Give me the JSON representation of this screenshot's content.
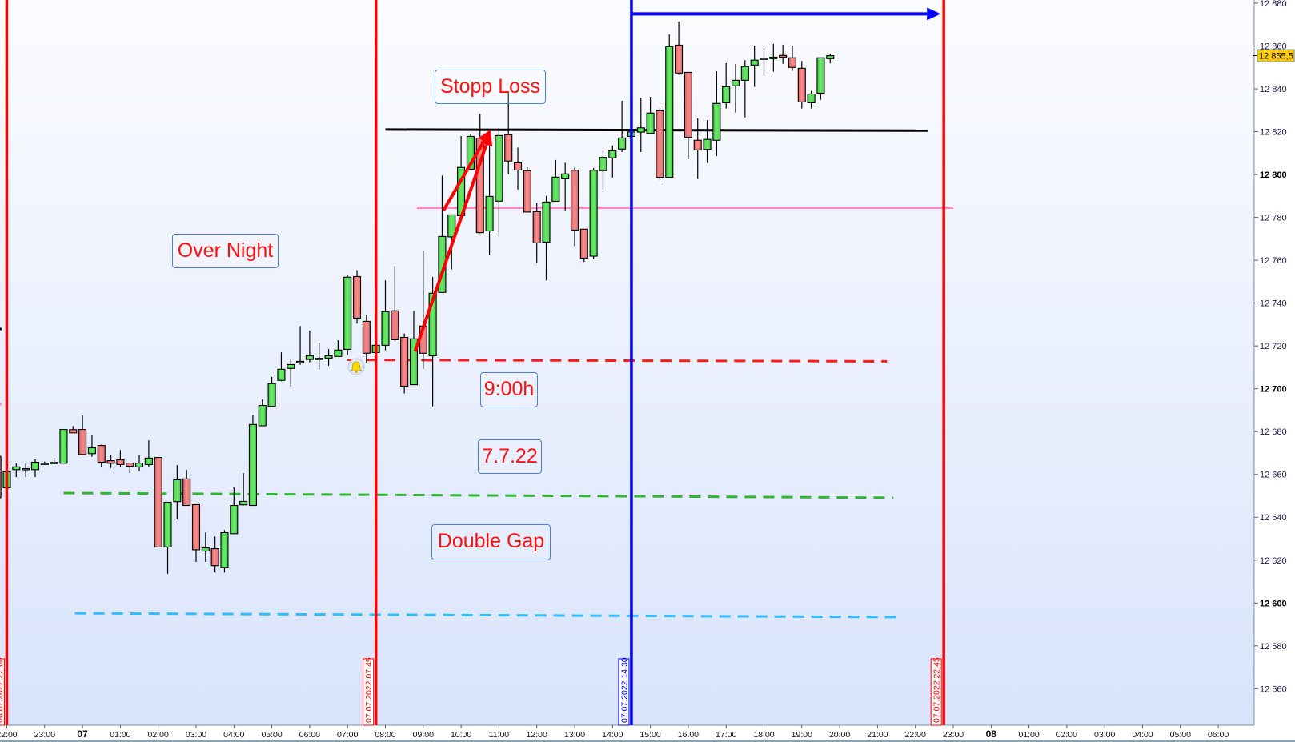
{
  "chart_data": {
    "type": "candlestick",
    "interval": "15min",
    "y_axis": {
      "range": [
        12545,
        12882
      ],
      "ticks": [
        12880,
        12860,
        12840,
        12820,
        12800,
        12780,
        12760,
        12740,
        12720,
        12700,
        12680,
        12660,
        12640,
        12620,
        12600,
        12580,
        12560
      ],
      "bold_ticks": [
        12800,
        12700,
        12600
      ],
      "tick_labels": [
        "12 880",
        "12 860",
        "12 840",
        "12 820",
        "12 800",
        "12 780",
        "12 760",
        "12 740",
        "12 720",
        "12 700",
        "12 680",
        "12 660",
        "12 640",
        "12 620",
        "12 600",
        "12 580",
        "12 560"
      ]
    },
    "x_axis": {
      "ticks": [
        {
          "t": "06.07 22:00",
          "label": "22:00"
        },
        {
          "t": "06.07 23:00",
          "label": "23:00"
        },
        {
          "t": "07.07 00:00",
          "label": "07",
          "bold": true
        },
        {
          "t": "07.07 01:00",
          "label": "01:00"
        },
        {
          "t": "07.07 02:00",
          "label": "02:00"
        },
        {
          "t": "07.07 03:00",
          "label": "03:00"
        },
        {
          "t": "07.07 04:00",
          "label": "04:00"
        },
        {
          "t": "07.07 05:00",
          "label": "05:00"
        },
        {
          "t": "07.07 06:00",
          "label": "06:00"
        },
        {
          "t": "07.07 07:00",
          "label": "07:00"
        },
        {
          "t": "07.07 08:00",
          "label": "08:00"
        },
        {
          "t": "07.07 09:00",
          "label": "09:00"
        },
        {
          "t": "07.07 10:00",
          "label": "10:00"
        },
        {
          "t": "07.07 11:00",
          "label": "11:00"
        },
        {
          "t": "07.07 12:00",
          "label": "12:00"
        },
        {
          "t": "07.07 13:00",
          "label": "13:00"
        },
        {
          "t": "07.07 14:00",
          "label": "14:00"
        },
        {
          "t": "07.07 15:00",
          "label": "15:00"
        },
        {
          "t": "07.07 16:00",
          "label": "16:00"
        },
        {
          "t": "07.07 17:00",
          "label": "17:00"
        },
        {
          "t": "07.07 18:00",
          "label": "18:00"
        },
        {
          "t": "07.07 19:00",
          "label": "19:00"
        },
        {
          "t": "07.07 20:00",
          "label": "20:00"
        },
        {
          "t": "07.07 21:00",
          "label": "21:00"
        },
        {
          "t": "07.07 22:00",
          "label": "22:00"
        },
        {
          "t": "07.07 23:00",
          "label": "23:00"
        },
        {
          "t": "08.07 00:00",
          "label": "08",
          "bold": true
        },
        {
          "t": "08.07 01:00",
          "label": "01:00"
        },
        {
          "t": "08.07 02:00",
          "label": "02:00"
        },
        {
          "t": "08.07 03:00",
          "label": "03:00"
        },
        {
          "t": "08.07 04:00",
          "label": "04:00"
        },
        {
          "t": "08.07 05:00",
          "label": "05:00"
        },
        {
          "t": "08.07 06:00",
          "label": "06:00"
        }
      ]
    },
    "last_price": {
      "value": 12855.5,
      "label": "12 855,5"
    },
    "candles_columns": [
      "time",
      "open",
      "high",
      "low",
      "close"
    ],
    "candles": [
      [
        "06.07 21:45",
        12668.4,
        12669,
        12649,
        12649.1
      ],
      [
        "06.07 22:00",
        12653.7,
        12662,
        12652,
        12661.2
      ],
      [
        "06.07 22:15",
        12662.2,
        12665.3,
        12658.7,
        12663.5
      ],
      [
        "06.07 22:30",
        12662.7,
        12665,
        12658.7,
        12662.7
      ],
      [
        "06.07 22:45",
        12662.2,
        12667,
        12658.7,
        12665.7
      ],
      [
        "06.07 23:00",
        12665.2,
        12666,
        12664.5,
        12665.2
      ],
      [
        "06.07 23:15",
        12665.6,
        12667.7,
        12664.8,
        12665.6
      ],
      [
        "06.07 23:30",
        12665.2,
        12681,
        12665.2,
        12681
      ],
      [
        "06.07 23:45",
        12680.9,
        12682.6,
        12679.4,
        12679.4
      ],
      [
        "07.07 00:00",
        12681,
        12687.5,
        12669.3,
        12669.3
      ],
      [
        "07.07 00:15",
        12669.7,
        12678.2,
        12668.2,
        12672.4
      ],
      [
        "07.07 00:30",
        12673.5,
        12674,
        12663.3,
        12665.7
      ],
      [
        "07.07 00:45",
        12666.4,
        12668.8,
        12663,
        12665.2
      ],
      [
        "07.07 01:00",
        12666.8,
        12671.4,
        12663.7,
        12664.6
      ],
      [
        "07.07 01:15",
        12665.3,
        12665.3,
        12660.7,
        12663.8
      ],
      [
        "07.07 01:30",
        12663.5,
        12669,
        12661.5,
        12665.3
      ],
      [
        "07.07 01:45",
        12664.6,
        12675.9,
        12663.7,
        12667.6
      ],
      [
        "07.07 02:00",
        12667.9,
        12667.9,
        12626.1,
        12626.1
      ],
      [
        "07.07 02:15",
        12626.1,
        12647,
        12613.6,
        12647
      ],
      [
        "07.07 02:30",
        12647.3,
        12664.3,
        12639,
        12657.5
      ],
      [
        "07.07 02:45",
        12657.9,
        12662.1,
        12645.5,
        12645.5
      ],
      [
        "07.07 03:00",
        12645.9,
        12645.9,
        12619.2,
        12624.8
      ],
      [
        "07.07 03:15",
        12624.2,
        12632.9,
        12619.2,
        12625.7
      ],
      [
        "07.07 03:30",
        12625.3,
        12631,
        12614.2,
        12617.4
      ],
      [
        "07.07 03:45",
        12616.6,
        12634,
        12614.2,
        12632.8
      ],
      [
        "07.07 04:00",
        12632.3,
        12653.9,
        12632.3,
        12645.5
      ],
      [
        "07.07 04:15",
        12645.8,
        12660.6,
        12645.5,
        12647.4
      ],
      [
        "07.07 04:30",
        12645.5,
        12687.7,
        12645.5,
        12683.3
      ],
      [
        "07.07 04:45",
        12682.7,
        12695,
        12682.7,
        12692.2
      ],
      [
        "07.07 05:00",
        12691.8,
        12705.5,
        12691.8,
        12702.4
      ],
      [
        "07.07 05:15",
        12703.9,
        12717,
        12703.5,
        12709.1
      ],
      [
        "07.07 05:30",
        12709.5,
        12713.6,
        12701.1,
        12711.3
      ],
      [
        "07.07 05:45",
        12712.8,
        12729.3,
        12711.2,
        12712.8
      ],
      [
        "07.07 06:00",
        12713.7,
        12727.2,
        12712.3,
        12715.4
      ],
      [
        "07.07 06:15",
        12714.2,
        12721.5,
        12709,
        12714.2
      ],
      [
        "07.07 06:30",
        12714.3,
        12718.6,
        12710.8,
        12715.4
      ],
      [
        "07.07 06:45",
        12715.1,
        12722.7,
        12715.1,
        12718.1
      ],
      [
        "07.07 07:00",
        12718.4,
        12752.9,
        12715.8,
        12752.1
      ],
      [
        "07.07 07:15",
        12752.4,
        12755.4,
        12730.4,
        12733
      ],
      [
        "07.07 07:30",
        12731.5,
        12734.6,
        12712.1,
        12716.6
      ],
      [
        "07.07 07:45",
        12716.9,
        12720.3,
        12716.9,
        12720.3
      ],
      [
        "07.07 08:00",
        12720.3,
        12750.7,
        12718,
        12736
      ],
      [
        "07.07 08:15",
        12736.4,
        12757.3,
        12722.5,
        12722.9
      ],
      [
        "07.07 08:30",
        12724,
        12725.8,
        12697.8,
        12701.2
      ],
      [
        "07.07 08:45",
        12701.9,
        12736.4,
        12701.9,
        12723.3
      ],
      [
        "07.07 09:00",
        12729.3,
        12764.4,
        12709.3,
        12716.6
      ],
      [
        "07.07 09:15",
        12715.4,
        12752.2,
        12691.8,
        12744.6
      ],
      [
        "07.07 09:30",
        12745,
        12799.5,
        12745,
        12771.1
      ],
      [
        "07.07 09:45",
        12770.9,
        12781.2,
        12755.7,
        12781.2
      ],
      [
        "07.07 10:00",
        12780.8,
        12818,
        12780.8,
        12803.3
      ],
      [
        "07.07 10:15",
        12802.5,
        12819,
        12802.5,
        12817.8
      ],
      [
        "07.07 10:30",
        12817,
        12828.3,
        12772.5,
        12772.9
      ],
      [
        "07.07 10:45",
        12773.7,
        12814.2,
        12762.4,
        12789.8
      ],
      [
        "07.07 11:00",
        12787.6,
        12821.7,
        12772.1,
        12818.2
      ],
      [
        "07.07 11:15",
        12818.6,
        12838.9,
        12800.2,
        12806.3
      ],
      [
        "07.07 11:30",
        12805.5,
        12812.6,
        12793,
        12802.1
      ],
      [
        "07.07 11:45",
        12801.8,
        12803.4,
        12782.5,
        12782.5
      ],
      [
        "07.07 12:00",
        12782.7,
        12786.8,
        12758.7,
        12768.1
      ],
      [
        "07.07 12:15",
        12768.5,
        12790,
        12750.6,
        12787.2
      ],
      [
        "07.07 12:30",
        12787.5,
        12806.8,
        12787.5,
        12798.8
      ],
      [
        "07.07 12:45",
        12798,
        12805.5,
        12783,
        12800.3
      ],
      [
        "07.07 13:00",
        12802,
        12803.3,
        12766.6,
        12774.1
      ],
      [
        "07.07 13:15",
        12774.5,
        12774.5,
        12759.2,
        12761
      ],
      [
        "07.07 13:30",
        12761.9,
        12803,
        12760.5,
        12802
      ],
      [
        "07.07 13:45",
        12801.8,
        12811.1,
        12793,
        12808
      ],
      [
        "07.07 14:00",
        12807.8,
        12813.6,
        12798.6,
        12811.1
      ],
      [
        "07.07 14:15",
        12811.9,
        12834.4,
        12810.5,
        12817.1
      ],
      [
        "07.07 14:30",
        12817.8,
        12820.5,
        12817.5,
        12819.9
      ],
      [
        "07.07 14:45",
        12819.8,
        12835.9,
        12810.5,
        12821.8
      ],
      [
        "07.07 15:00",
        12819.2,
        12836.3,
        12819,
        12828.7
      ],
      [
        "07.07 15:15",
        12829.8,
        12831,
        12797.5,
        12798.7
      ],
      [
        "07.07 15:30",
        12798.7,
        12865.4,
        12798.7,
        12859.7
      ],
      [
        "07.07 15:45",
        12860.4,
        12871.4,
        12846.6,
        12847.4
      ],
      [
        "07.07 16:00",
        12847.7,
        12847.7,
        12807.1,
        12817.4
      ],
      [
        "07.07 16:15",
        12816,
        12826.2,
        12797.9,
        12811.5
      ],
      [
        "07.07 16:30",
        12811.7,
        12825.4,
        12805.4,
        12816.4
      ],
      [
        "07.07 16:45",
        12816,
        12848.2,
        12808.6,
        12833.2
      ],
      [
        "07.07 17:00",
        12833.5,
        12852,
        12830.8,
        12841
      ],
      [
        "07.07 17:15",
        12841.4,
        12851.6,
        12828.9,
        12844
      ],
      [
        "07.07 17:30",
        12844,
        12853.4,
        12826.7,
        12850.4
      ],
      [
        "07.07 17:45",
        12851.1,
        12860.2,
        12840.9,
        12853.4
      ],
      [
        "07.07 18:00",
        12854.3,
        12860.2,
        12845.8,
        12854.3
      ],
      [
        "07.07 18:15",
        12854.1,
        12861,
        12848,
        12854.8
      ],
      [
        "07.07 18:30",
        12855.6,
        12860.6,
        12851.7,
        12854.8
      ],
      [
        "07.07 18:45",
        12854.5,
        12860.2,
        12848.4,
        12850
      ],
      [
        "07.07 19:00",
        12849.6,
        12853,
        12830.8,
        12833.9
      ],
      [
        "07.07 19:15",
        12833.5,
        12839,
        12830.8,
        12837.6
      ],
      [
        "07.07 19:30",
        12838,
        12854.5,
        12834.9,
        12854.5
      ],
      [
        "07.07 19:45",
        12854.1,
        12856.5,
        12851.9,
        12855.5
      ]
    ],
    "vertical_lines": [
      {
        "t": "06.07 22:00",
        "label": "06.07.2022 22:00",
        "color": "#ff0000"
      },
      {
        "t": "07.07 07:45",
        "label": "07.07.2022 07:45",
        "color": "#ff0000"
      },
      {
        "t": "07.07 14:30",
        "label": "07.07.2022 14:30",
        "color": "#0000ff"
      },
      {
        "t": "07.07 22:45",
        "label": "07.07.2022 22:45",
        "color": "#ff0000"
      }
    ],
    "horizontal_lines": [
      {
        "name": "black-level",
        "color": "#000000",
        "style": "solid",
        "t1": "07.07 08:00",
        "p1": 12821,
        "t2": "07.07 22:20",
        "p2": 12820.5
      },
      {
        "name": "pink-level",
        "color": "#ff88c8",
        "style": "solid",
        "t1": "07.07 08:50",
        "p1": 12784.5,
        "t2": "07.07 23:00",
        "p2": 12784.5
      },
      {
        "name": "red-dashed-level",
        "color": "#ff1a1a",
        "style": "dashed",
        "t1": "07.07 07:00",
        "p1": 12713.5,
        "t2": "07.07 21:15",
        "p2": 12712.8
      },
      {
        "name": "green-dashed-level",
        "color": "#33b533",
        "style": "dashed",
        "t1": "06.07 23:30",
        "p1": 12651.3,
        "t2": "07.07 21:25",
        "p2": 12649.1
      },
      {
        "name": "cyan-dashed-level",
        "color": "#33bbff",
        "style": "dashed",
        "t1": "06.07 23:48",
        "p1": 12595.2,
        "t2": "07.07 21:40",
        "p2": 12593.4
      },
      {
        "name": "black-stub",
        "color": "#000000",
        "style": "solid",
        "t1": "06.07 21:30",
        "p1": 12727.9,
        "t2": "06.07 21:52",
        "p2": 12727.9
      },
      {
        "name": "pink-stub",
        "color": "#ff88c8",
        "style": "solid",
        "t1": "06.07 21:30",
        "p1": 12692.8,
        "t2": "06.07 21:52",
        "p2": 12692.8
      }
    ],
    "arrows": [
      {
        "name": "blue-arrow",
        "color": "#0000ff",
        "t1": "07.07 14:30",
        "p1": 12875,
        "t2": "07.07 22:40",
        "p2": 12875
      },
      {
        "name": "red-arrow-1",
        "color": "#ff0000",
        "t1": "07.07 09:32",
        "p1": 12783.2,
        "t2": "07.07 10:47",
        "p2": 12821
      },
      {
        "name": "red-arrow-2",
        "color": "#ff0000",
        "t1": "07.07 08:47",
        "p1": 12717.4,
        "t2": "07.07 10:47",
        "p2": 12820
      }
    ],
    "annotations": {
      "stopp_loss": "Stopp Loss",
      "over_night": "Over Night",
      "time": "9:00h",
      "date": "7.7.22",
      "double_gap": "Double Gap"
    },
    "alert_icon": "bell-icon",
    "colors": {
      "up": "#55dd55",
      "down": "#ee7373",
      "background_top": "#fbfcff",
      "background_bottom": "#d9e4fc"
    }
  }
}
